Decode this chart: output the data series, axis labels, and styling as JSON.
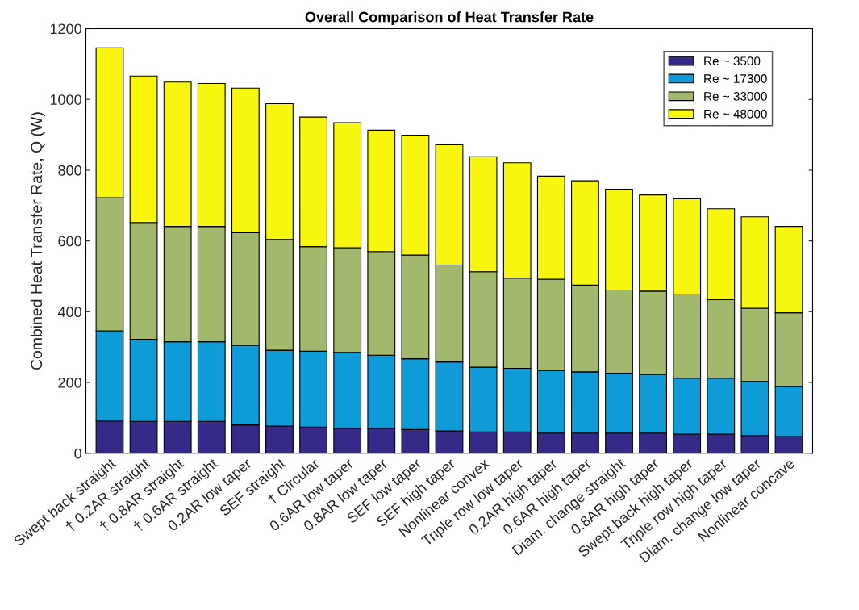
{
  "chart_data": {
    "type": "bar",
    "stacked": true,
    "title": "Overall Comparison of Heat Transfer Rate",
    "ylabel": "Combined Heat Transfer Rate, Q (W)",
    "categories": [
      "Swept back straight",
      "† 0.2AR straight",
      "† 0.8AR straight",
      "† 0.6AR straight",
      "0.2AR low taper",
      "SEF straight",
      "† Circular",
      "0.6AR low taper",
      "0.8AR low taper",
      "SEF low taper",
      "SEF high taper",
      "Nonlinear convex",
      "Triple row low taper",
      "0.2AR high taper",
      "0.6AR high taper",
      "Diam. change straight",
      "0.8AR high taper",
      "Swept back high taper",
      "Triple row high taper",
      "Diam. change low taper",
      "Nonlinear concave"
    ],
    "series": [
      {
        "name": "Re ~ 3500",
        "color": "#352a87",
        "values": [
          91,
          90,
          90,
          90,
          80,
          77,
          74,
          70,
          70,
          67,
          63,
          60,
          60,
          57,
          57,
          57,
          57,
          54,
          54,
          50,
          47
        ]
      },
      {
        "name": "Re ~ 17300",
        "color": "#0f9bd7",
        "values": [
          255,
          232,
          225,
          225,
          225,
          214,
          214,
          215,
          207,
          200,
          195,
          183,
          180,
          176,
          173,
          169,
          166,
          158,
          158,
          153,
          142
        ]
      },
      {
        "name": "Re ~ 33000",
        "color": "#a2b86c",
        "values": [
          376,
          330,
          326,
          326,
          318,
          313,
          296,
          296,
          293,
          293,
          274,
          270,
          255,
          259,
          245,
          235,
          235,
          236,
          222,
          207,
          208
        ]
      },
      {
        "name": "Re ~ 48000",
        "color": "#f8f50e",
        "values": [
          424,
          414,
          408,
          404,
          409,
          384,
          366,
          353,
          343,
          339,
          340,
          325,
          326,
          291,
          295,
          285,
          272,
          271,
          257,
          258,
          244
        ]
      }
    ],
    "ylim": [
      0,
      1200
    ],
    "yticks": [
      0,
      200,
      400,
      600,
      800,
      1000,
      1200
    ],
    "grid": false,
    "legend": "top right"
  }
}
